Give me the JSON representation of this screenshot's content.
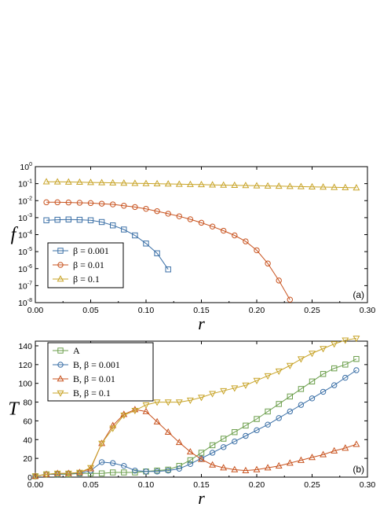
{
  "colors": {
    "blue": "#3a6fa6",
    "orange": "#c8531f",
    "gold": "#c8a428",
    "green": "#6b9e4b"
  },
  "chart_data": [
    {
      "type": "scatter",
      "title": "",
      "xlabel": "r",
      "ylabel": "f",
      "xlim": [
        0.0,
        0.3
      ],
      "ylim": [
        1e-08,
        1
      ],
      "yscale": "log",
      "panel_label": "(a)",
      "legend_placement": "bottom-left",
      "x_ticks": [
        "0.00",
        "0.05",
        "0.10",
        "0.15",
        "0.20",
        "0.25",
        "0.30"
      ],
      "y_ticks": [
        {
          "value": 1,
          "base": "10",
          "exp": "0"
        },
        {
          "value": 0.1,
          "base": "10",
          "exp": "-1"
        },
        {
          "value": 0.01,
          "base": "10",
          "exp": "-2"
        },
        {
          "value": 0.001,
          "base": "10",
          "exp": "-3"
        },
        {
          "value": 0.0001,
          "base": "10",
          "exp": "-4"
        },
        {
          "value": 1e-05,
          "base": "10",
          "exp": "-5"
        },
        {
          "value": 1e-06,
          "base": "10",
          "exp": "-6"
        },
        {
          "value": 1e-07,
          "base": "10",
          "exp": "-7"
        },
        {
          "value": 1e-08,
          "base": "10",
          "exp": "-8"
        }
      ],
      "series": [
        {
          "name": "β = 0.001",
          "marker": "square",
          "color": "#3a6fa6",
          "x": [
            0.01,
            0.02,
            0.03,
            0.04,
            0.05,
            0.06,
            0.07,
            0.08,
            0.09,
            0.1,
            0.11,
            0.12
          ],
          "y": [
            0.0007,
            0.00075,
            0.00078,
            0.00075,
            0.0007,
            0.00055,
            0.00035,
            0.0002,
            9e-05,
            3e-05,
            8e-06,
            9e-07
          ]
        },
        {
          "name": "β = 0.01",
          "marker": "circle",
          "color": "#c8531f",
          "x": [
            0.01,
            0.02,
            0.03,
            0.04,
            0.05,
            0.06,
            0.07,
            0.08,
            0.09,
            0.1,
            0.11,
            0.12,
            0.13,
            0.14,
            0.15,
            0.16,
            0.17,
            0.18,
            0.19,
            0.2,
            0.21,
            0.22,
            0.23
          ],
          "y": [
            0.008,
            0.008,
            0.0078,
            0.0075,
            0.0072,
            0.0066,
            0.006,
            0.005,
            0.0042,
            0.0033,
            0.0024,
            0.0017,
            0.0012,
            0.0008,
            0.0005,
            0.0003,
            0.00017,
            9e-05,
            4e-05,
            1.2e-05,
            2e-06,
            2e-07,
            1.5e-08
          ]
        },
        {
          "name": "β = 0.1",
          "marker": "triangle-up",
          "color": "#c8a428",
          "x": [
            0.01,
            0.02,
            0.03,
            0.04,
            0.05,
            0.06,
            0.07,
            0.08,
            0.09,
            0.1,
            0.11,
            0.12,
            0.13,
            0.14,
            0.15,
            0.16,
            0.17,
            0.18,
            0.19,
            0.2,
            0.21,
            0.22,
            0.23,
            0.24,
            0.25,
            0.26,
            0.27,
            0.28,
            0.29
          ],
          "y": [
            0.13,
            0.128,
            0.125,
            0.122,
            0.118,
            0.115,
            0.112,
            0.108,
            0.105,
            0.102,
            0.099,
            0.096,
            0.093,
            0.09,
            0.088,
            0.085,
            0.082,
            0.08,
            0.078,
            0.075,
            0.073,
            0.071,
            0.069,
            0.067,
            0.065,
            0.063,
            0.061,
            0.059,
            0.057
          ]
        }
      ]
    },
    {
      "type": "line",
      "title": "",
      "xlabel": "r",
      "ylabel": "T",
      "xlim": [
        0.0,
        0.3
      ],
      "ylim": [
        0,
        145
      ],
      "yscale": "linear",
      "panel_label": "(b)",
      "legend_placement": "top-left",
      "x_ticks": [
        "0.00",
        "0.05",
        "0.10",
        "0.15",
        "0.20",
        "0.25",
        "0.30"
      ],
      "y_ticks": [
        "0",
        "20",
        "40",
        "60",
        "80",
        "100",
        "120",
        "140"
      ],
      "series": [
        {
          "name": "A",
          "marker": "square",
          "color": "#6b9e4b",
          "x": [
            0.0,
            0.01,
            0.02,
            0.03,
            0.04,
            0.05,
            0.06,
            0.07,
            0.08,
            0.09,
            0.1,
            0.11,
            0.12,
            0.13,
            0.14,
            0.15,
            0.16,
            0.17,
            0.18,
            0.19,
            0.2,
            0.21,
            0.22,
            0.23,
            0.24,
            0.25,
            0.26,
            0.27,
            0.28,
            0.29
          ],
          "y": [
            1,
            3,
            3,
            3,
            4,
            4,
            4,
            5,
            5,
            5,
            6,
            7,
            8,
            12,
            18,
            26,
            34,
            41,
            48,
            55,
            62,
            70,
            78,
            86,
            94,
            102,
            110,
            116,
            120,
            126
          ]
        },
        {
          "name": "B, β = 0.001",
          "marker": "circle",
          "color": "#3a6fa6",
          "x": [
            0.0,
            0.01,
            0.02,
            0.03,
            0.04,
            0.05,
            0.06,
            0.07,
            0.08,
            0.09,
            0.1,
            0.11,
            0.12,
            0.13,
            0.14,
            0.15,
            0.16,
            0.17,
            0.18,
            0.19,
            0.2,
            0.21,
            0.22,
            0.23,
            0.24,
            0.25,
            0.26,
            0.27,
            0.28,
            0.29
          ],
          "y": [
            1,
            3,
            3,
            4,
            4,
            7,
            16,
            15,
            12,
            7,
            6,
            6,
            7,
            9,
            14,
            20,
            26,
            32,
            38,
            44,
            50,
            56,
            63,
            70,
            77,
            84,
            91,
            98,
            106,
            114
          ]
        },
        {
          "name": "B, β = 0.01",
          "marker": "triangle-up",
          "color": "#c8531f",
          "x": [
            0.0,
            0.01,
            0.02,
            0.03,
            0.04,
            0.05,
            0.06,
            0.07,
            0.08,
            0.09,
            0.1,
            0.11,
            0.12,
            0.13,
            0.14,
            0.15,
            0.16,
            0.17,
            0.18,
            0.19,
            0.2,
            0.21,
            0.22,
            0.23,
            0.24,
            0.25,
            0.26,
            0.27,
            0.28,
            0.29
          ],
          "y": [
            1,
            3,
            4,
            4,
            5,
            9,
            36,
            55,
            67,
            72,
            70,
            59,
            48,
            37,
            27,
            19,
            13,
            10,
            8,
            7,
            8,
            10,
            12,
            15,
            18,
            21,
            24,
            28,
            31,
            35
          ]
        },
        {
          "name": "B, β = 0.1",
          "marker": "triangle-down",
          "color": "#c8a428",
          "x": [
            0.0,
            0.01,
            0.02,
            0.03,
            0.04,
            0.05,
            0.06,
            0.07,
            0.08,
            0.09,
            0.1,
            0.11,
            0.12,
            0.13,
            0.14,
            0.15,
            0.16,
            0.17,
            0.18,
            0.19,
            0.2,
            0.21,
            0.22,
            0.23,
            0.24,
            0.25,
            0.26,
            0.27,
            0.28,
            0.29
          ],
          "y": [
            1,
            3,
            4,
            4,
            5,
            10,
            36,
            52,
            66,
            71,
            77,
            80,
            80,
            80,
            82,
            85,
            89,
            92,
            95,
            98,
            103,
            108,
            113,
            119,
            126,
            132,
            137,
            142,
            146,
            148
          ]
        }
      ]
    }
  ]
}
